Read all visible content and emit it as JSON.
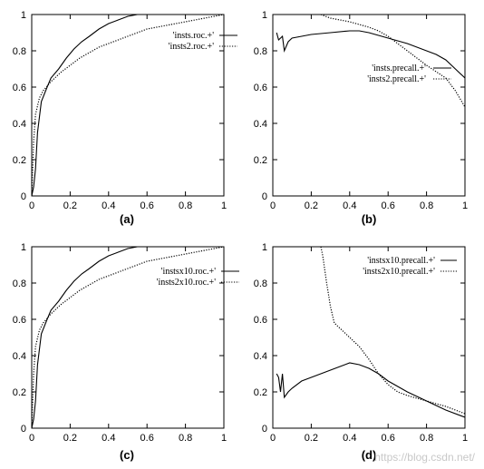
{
  "watermark": "https://blog.csdn.net/",
  "chart_data": [
    {
      "type": "line",
      "panel_label": "(a)",
      "xlim": [
        0,
        1
      ],
      "ylim": [
        0,
        1
      ],
      "xticks": [
        "0",
        "0.2",
        "0.4",
        "0.6",
        "0.8",
        "1"
      ],
      "yticks": [
        "0",
        "0.2",
        "0.4",
        "0.6",
        "0.8",
        "1"
      ],
      "grid": false,
      "legend_position": "top-right",
      "series": [
        {
          "name": "'insts.roc.+'",
          "style": "solid",
          "x": [
            0,
            0.01,
            0.02,
            0.03,
            0.05,
            0.08,
            0.1,
            0.14,
            0.18,
            0.22,
            0.26,
            0.3,
            0.35,
            0.4,
            0.45,
            0.5,
            0.55,
            0.6,
            0.7,
            0.8,
            0.9,
            1.0
          ],
          "y": [
            0,
            0.05,
            0.15,
            0.35,
            0.52,
            0.6,
            0.65,
            0.7,
            0.76,
            0.81,
            0.85,
            0.88,
            0.92,
            0.95,
            0.97,
            0.99,
            1.0,
            1.0,
            1.0,
            1.0,
            1.0,
            1.0
          ]
        },
        {
          "name": "'insts2.roc.+'",
          "style": "dotted",
          "x": [
            0,
            0.01,
            0.02,
            0.04,
            0.06,
            0.1,
            0.15,
            0.2,
            0.25,
            0.3,
            0.35,
            0.4,
            0.45,
            0.5,
            0.55,
            0.6,
            0.7,
            0.8,
            0.85,
            0.9,
            0.95,
            1.0
          ],
          "y": [
            0,
            0.3,
            0.45,
            0.54,
            0.58,
            0.63,
            0.68,
            0.72,
            0.76,
            0.79,
            0.82,
            0.84,
            0.86,
            0.88,
            0.9,
            0.92,
            0.94,
            0.96,
            0.97,
            0.98,
            0.99,
            1.0
          ]
        }
      ]
    },
    {
      "type": "line",
      "panel_label": "(b)",
      "xlim": [
        0,
        1
      ],
      "ylim": [
        0,
        1
      ],
      "xticks": [
        "0",
        "0.2",
        "0.4",
        "0.6",
        "0.8",
        "1"
      ],
      "yticks": [
        "0",
        "0.2",
        "0.4",
        "0.6",
        "0.8",
        "1"
      ],
      "grid": false,
      "legend_position": "center-right",
      "series": [
        {
          "name": "'insts.precall.+'",
          "style": "solid",
          "x": [
            0.02,
            0.03,
            0.05,
            0.06,
            0.08,
            0.1,
            0.15,
            0.2,
            0.3,
            0.4,
            0.45,
            0.5,
            0.6,
            0.7,
            0.8,
            0.85,
            0.9,
            0.95,
            1.0
          ],
          "y": [
            0.9,
            0.86,
            0.88,
            0.8,
            0.85,
            0.87,
            0.88,
            0.89,
            0.9,
            0.91,
            0.91,
            0.9,
            0.87,
            0.84,
            0.8,
            0.78,
            0.75,
            0.7,
            0.65
          ]
        },
        {
          "name": "'insts2.precall.+'",
          "style": "dotted",
          "x": [
            0.25,
            0.3,
            0.35,
            0.4,
            0.5,
            0.55,
            0.6,
            0.65,
            0.7,
            0.8,
            0.9,
            0.95,
            1.0
          ],
          "y": [
            1.0,
            0.98,
            0.97,
            0.96,
            0.93,
            0.91,
            0.88,
            0.84,
            0.8,
            0.72,
            0.65,
            0.58,
            0.49
          ]
        }
      ]
    },
    {
      "type": "line",
      "panel_label": "(c)",
      "xlim": [
        0,
        1
      ],
      "ylim": [
        0,
        1
      ],
      "xticks": [
        "0",
        "0.2",
        "0.4",
        "0.6",
        "0.8",
        "1"
      ],
      "yticks": [
        "0",
        "0.2",
        "0.4",
        "0.6",
        "0.8",
        "1"
      ],
      "grid": false,
      "legend_position": "top-right",
      "series": [
        {
          "name": "'instsx10.roc.+'",
          "style": "solid",
          "x": [
            0,
            0.01,
            0.02,
            0.03,
            0.05,
            0.08,
            0.1,
            0.14,
            0.18,
            0.22,
            0.26,
            0.3,
            0.35,
            0.4,
            0.45,
            0.5,
            0.55,
            0.6,
            0.7,
            0.8,
            0.9,
            1.0
          ],
          "y": [
            0,
            0.05,
            0.15,
            0.35,
            0.52,
            0.6,
            0.65,
            0.7,
            0.76,
            0.81,
            0.85,
            0.88,
            0.92,
            0.95,
            0.97,
            0.99,
            1.0,
            1.0,
            1.0,
            1.0,
            1.0,
            1.0
          ]
        },
        {
          "name": "'insts2x10.roc.+'",
          "style": "dotted",
          "x": [
            0,
            0.01,
            0.02,
            0.04,
            0.06,
            0.1,
            0.15,
            0.2,
            0.25,
            0.3,
            0.35,
            0.4,
            0.45,
            0.5,
            0.55,
            0.6,
            0.7,
            0.8,
            0.85,
            0.9,
            0.95,
            1.0
          ],
          "y": [
            0,
            0.3,
            0.45,
            0.54,
            0.58,
            0.63,
            0.68,
            0.72,
            0.76,
            0.79,
            0.82,
            0.84,
            0.86,
            0.88,
            0.9,
            0.92,
            0.94,
            0.96,
            0.97,
            0.98,
            0.99,
            1.0
          ]
        }
      ]
    },
    {
      "type": "line",
      "panel_label": "(d)",
      "xlim": [
        0,
        1
      ],
      "ylim": [
        0,
        1
      ],
      "xticks": [
        "0",
        "0.2",
        "0.4",
        "0.6",
        "0.8",
        "1"
      ],
      "yticks": [
        "0",
        "0.2",
        "0.4",
        "0.6",
        "0.8",
        "1"
      ],
      "grid": false,
      "legend_position": "top-right",
      "series": [
        {
          "name": "'instsx10.precall.+'",
          "style": "solid",
          "x": [
            0.02,
            0.03,
            0.04,
            0.05,
            0.06,
            0.08,
            0.1,
            0.15,
            0.2,
            0.25,
            0.3,
            0.35,
            0.4,
            0.45,
            0.5,
            0.55,
            0.6,
            0.7,
            0.8,
            0.9,
            1.0
          ],
          "y": [
            0.3,
            0.28,
            0.2,
            0.3,
            0.17,
            0.2,
            0.22,
            0.26,
            0.28,
            0.3,
            0.32,
            0.34,
            0.36,
            0.35,
            0.33,
            0.3,
            0.26,
            0.2,
            0.15,
            0.1,
            0.06
          ]
        },
        {
          "name": "'insts2x10.precall.+'",
          "style": "dotted",
          "x": [
            0.25,
            0.26,
            0.28,
            0.3,
            0.32,
            0.35,
            0.4,
            0.45,
            0.5,
            0.55,
            0.6,
            0.65,
            0.7,
            0.8,
            0.9,
            1.0
          ],
          "y": [
            1.0,
            0.95,
            0.8,
            0.67,
            0.58,
            0.55,
            0.5,
            0.45,
            0.38,
            0.3,
            0.24,
            0.2,
            0.18,
            0.15,
            0.12,
            0.08
          ]
        }
      ]
    }
  ]
}
